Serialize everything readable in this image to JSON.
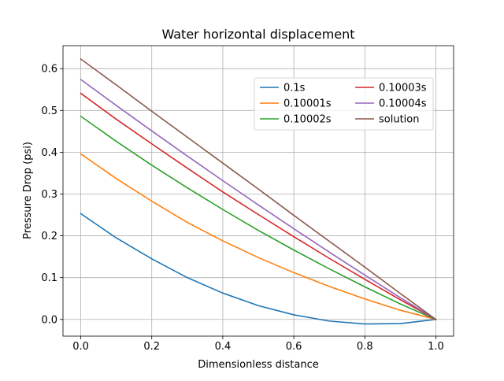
{
  "chart_data": {
    "type": "line",
    "title": "Water horizontal displacement",
    "xlabel": "Dimensionless distance",
    "ylabel": "Pressure Drop (psi)",
    "xlim": [
      -0.05,
      1.05
    ],
    "ylim": [
      -0.04,
      0.655
    ],
    "xticks": [
      0.0,
      0.2,
      0.4,
      0.6,
      0.8,
      1.0
    ],
    "xtick_labels": [
      "0.0",
      "0.2",
      "0.4",
      "0.6",
      "0.8",
      "1.0"
    ],
    "yticks": [
      0.0,
      0.1,
      0.2,
      0.3,
      0.4,
      0.5,
      0.6
    ],
    "ytick_labels": [
      "0.0",
      "0.1",
      "0.2",
      "0.3",
      "0.4",
      "0.5",
      "0.6"
    ],
    "grid": true,
    "legend_placement": "upper-right",
    "legend_columns": 2,
    "x": [
      0.0,
      0.1,
      0.2,
      0.3,
      0.4,
      0.5,
      0.6,
      0.7,
      0.8,
      0.9,
      1.0
    ],
    "series": [
      {
        "name": "0.1s",
        "color": "#1f77b4",
        "values": [
          0.253,
          0.195,
          0.145,
          0.1,
          0.063,
          0.033,
          0.011,
          -0.004,
          -0.011,
          -0.01,
          0.0
        ]
      },
      {
        "name": "0.10001s",
        "color": "#ff7f0e",
        "values": [
          0.396,
          0.337,
          0.283,
          0.232,
          0.188,
          0.148,
          0.112,
          0.079,
          0.049,
          0.022,
          0.0
        ]
      },
      {
        "name": "0.10002s",
        "color": "#2ca02c",
        "values": [
          0.486,
          0.426,
          0.369,
          0.315,
          0.263,
          0.213,
          0.166,
          0.121,
          0.078,
          0.037,
          0.0
        ]
      },
      {
        "name": "0.10003s",
        "color": "#d62728",
        "values": [
          0.541,
          0.479,
          0.42,
          0.362,
          0.305,
          0.251,
          0.198,
          0.146,
          0.096,
          0.047,
          0.0
        ]
      },
      {
        "name": "0.10004s",
        "color": "#9467bd",
        "values": [
          0.574,
          0.512,
          0.451,
          0.391,
          0.332,
          0.274,
          0.217,
          0.161,
          0.106,
          0.052,
          0.0
        ]
      },
      {
        "name": "solution",
        "color": "#8c564b",
        "values": [
          0.623,
          0.561,
          0.498,
          0.436,
          0.374,
          0.312,
          0.249,
          0.187,
          0.125,
          0.062,
          0.0
        ]
      }
    ]
  }
}
